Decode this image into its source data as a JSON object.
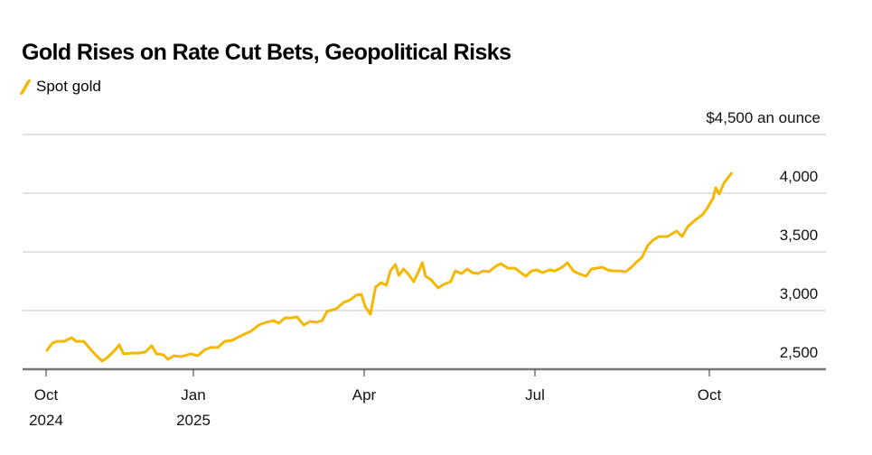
{
  "chart_data": {
    "type": "line",
    "title": "Gold Rises on Rate Cut Bets, Geopolitical Risks",
    "unit_label": "$4,500 an ounce",
    "xlabel": "",
    "ylabel": "",
    "x_units": "months since Oct 1, 2024",
    "ylim": [
      2500,
      4500
    ],
    "grid": true,
    "legend_position": "top-left",
    "y_ticks": [
      {
        "value": 2500,
        "label": "2,500"
      },
      {
        "value": 3000,
        "label": "3,000"
      },
      {
        "value": 3500,
        "label": "3,500"
      },
      {
        "value": 4000,
        "label": "4,000"
      },
      {
        "value": 4500,
        "label": ""
      }
    ],
    "x_ticks": [
      {
        "value": 0,
        "label": "Oct",
        "sub": "2024"
      },
      {
        "value": 3,
        "label": "Jan",
        "sub": "2025"
      },
      {
        "value": 6,
        "label": "Apr",
        "sub": ""
      },
      {
        "value": 9,
        "label": "Jul",
        "sub": ""
      },
      {
        "value": 12,
        "label": "Oct",
        "sub": ""
      }
    ],
    "series": [
      {
        "name": "Spot gold",
        "color": "#f5b800",
        "points": [
          [
            0.02,
            2662
          ],
          [
            0.13,
            2723
          ],
          [
            0.22,
            2738
          ],
          [
            0.37,
            2738
          ],
          [
            0.52,
            2769
          ],
          [
            0.61,
            2738
          ],
          [
            0.77,
            2738
          ],
          [
            0.87,
            2685
          ],
          [
            0.99,
            2631
          ],
          [
            1.14,
            2569
          ],
          [
            1.25,
            2600
          ],
          [
            1.4,
            2662
          ],
          [
            1.49,
            2708
          ],
          [
            1.58,
            2631
          ],
          [
            1.75,
            2638
          ],
          [
            1.88,
            2638
          ],
          [
            2.02,
            2646
          ],
          [
            2.15,
            2700
          ],
          [
            2.25,
            2631
          ],
          [
            2.39,
            2623
          ],
          [
            2.48,
            2585
          ],
          [
            2.61,
            2615
          ],
          [
            2.76,
            2608
          ],
          [
            2.94,
            2631
          ],
          [
            3.08,
            2615
          ],
          [
            3.19,
            2662
          ],
          [
            3.3,
            2685
          ],
          [
            3.43,
            2685
          ],
          [
            3.55,
            2738
          ],
          [
            3.68,
            2746
          ],
          [
            3.77,
            2769
          ],
          [
            3.9,
            2800
          ],
          [
            4.01,
            2823
          ],
          [
            4.15,
            2877
          ],
          [
            4.28,
            2900
          ],
          [
            4.41,
            2915
          ],
          [
            4.5,
            2892
          ],
          [
            4.61,
            2938
          ],
          [
            4.72,
            2938
          ],
          [
            4.82,
            2946
          ],
          [
            4.94,
            2877
          ],
          [
            5.05,
            2908
          ],
          [
            5.16,
            2900
          ],
          [
            5.26,
            2915
          ],
          [
            5.35,
            2992
          ],
          [
            5.51,
            3015
          ],
          [
            5.64,
            3069
          ],
          [
            5.76,
            3092
          ],
          [
            5.86,
            3131
          ],
          [
            5.95,
            3138
          ],
          [
            6.02,
            3031
          ],
          [
            6.11,
            2969
          ],
          [
            6.2,
            3200
          ],
          [
            6.3,
            3238
          ],
          [
            6.39,
            3215
          ],
          [
            6.46,
            3338
          ],
          [
            6.55,
            3392
          ],
          [
            6.61,
            3300
          ],
          [
            6.69,
            3354
          ],
          [
            6.77,
            3315
          ],
          [
            6.87,
            3246
          ],
          [
            6.96,
            3338
          ],
          [
            7.02,
            3408
          ],
          [
            7.08,
            3292
          ],
          [
            7.18,
            3261
          ],
          [
            7.3,
            3192
          ],
          [
            7.4,
            3223
          ],
          [
            7.52,
            3246
          ],
          [
            7.6,
            3338
          ],
          [
            7.71,
            3315
          ],
          [
            7.81,
            3354
          ],
          [
            7.9,
            3323
          ],
          [
            8.0,
            3315
          ],
          [
            8.09,
            3338
          ],
          [
            8.19,
            3331
          ],
          [
            8.31,
            3377
          ],
          [
            8.4,
            3400
          ],
          [
            8.53,
            3361
          ],
          [
            8.65,
            3361
          ],
          [
            8.75,
            3323
          ],
          [
            8.84,
            3292
          ],
          [
            8.94,
            3338
          ],
          [
            9.03,
            3346
          ],
          [
            9.13,
            3323
          ],
          [
            9.25,
            3346
          ],
          [
            9.34,
            3338
          ],
          [
            9.47,
            3369
          ],
          [
            9.56,
            3408
          ],
          [
            9.66,
            3338
          ],
          [
            9.75,
            3315
          ],
          [
            9.88,
            3292
          ],
          [
            9.97,
            3354
          ],
          [
            10.06,
            3361
          ],
          [
            10.16,
            3369
          ],
          [
            10.25,
            3346
          ],
          [
            10.34,
            3338
          ],
          [
            10.47,
            3338
          ],
          [
            10.56,
            3331
          ],
          [
            10.66,
            3369
          ],
          [
            10.75,
            3415
          ],
          [
            10.84,
            3454
          ],
          [
            10.94,
            3554
          ],
          [
            11.03,
            3600
          ],
          [
            11.13,
            3631
          ],
          [
            11.28,
            3631
          ],
          [
            11.38,
            3661
          ],
          [
            11.44,
            3677
          ],
          [
            11.53,
            3631
          ],
          [
            11.63,
            3715
          ],
          [
            11.75,
            3769
          ],
          [
            11.88,
            3815
          ],
          [
            11.97,
            3877
          ],
          [
            12.06,
            3954
          ],
          [
            12.11,
            4046
          ],
          [
            12.17,
            3992
          ],
          [
            12.25,
            4085
          ],
          [
            12.38,
            4169
          ]
        ]
      }
    ]
  }
}
